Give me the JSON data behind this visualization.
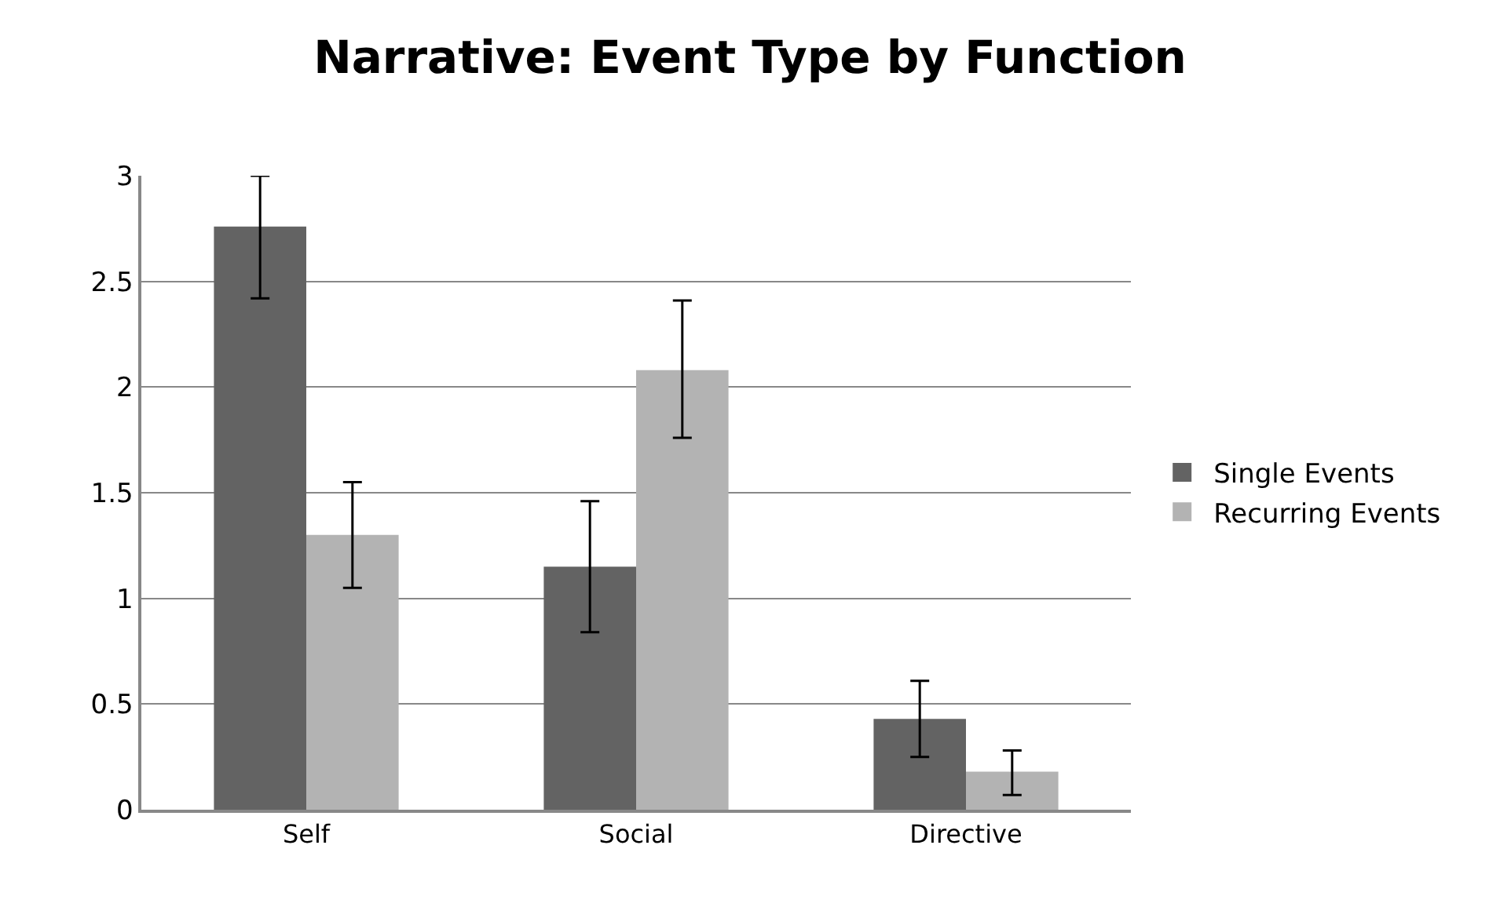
{
  "chart_data": {
    "type": "bar",
    "title": "Narrative: Event Type by Function",
    "categories": [
      "Self",
      "Social",
      "Directive"
    ],
    "series": [
      {
        "name": "Single Events",
        "color": "#636363",
        "values": [
          2.76,
          1.15,
          0.43
        ],
        "errors": [
          [
            2.42,
            3.0
          ],
          [
            0.84,
            1.46
          ],
          [
            0.25,
            0.61
          ]
        ]
      },
      {
        "name": "Recurring Events",
        "color": "#b3b3b3",
        "values": [
          1.3,
          2.08,
          0.18
        ],
        "errors": [
          [
            1.05,
            1.55
          ],
          [
            1.76,
            2.41
          ],
          [
            0.07,
            0.28
          ]
        ]
      }
    ],
    "ylim": [
      0,
      3
    ],
    "yticks": [
      0,
      {
        "value": 0.5,
        "label": "0.5"
      },
      1,
      {
        "value": 1.5,
        "label": "1.5"
      },
      2,
      {
        "value": 2.5,
        "label": "2.5"
      },
      3
    ],
    "grid": "y",
    "legend": "right"
  }
}
